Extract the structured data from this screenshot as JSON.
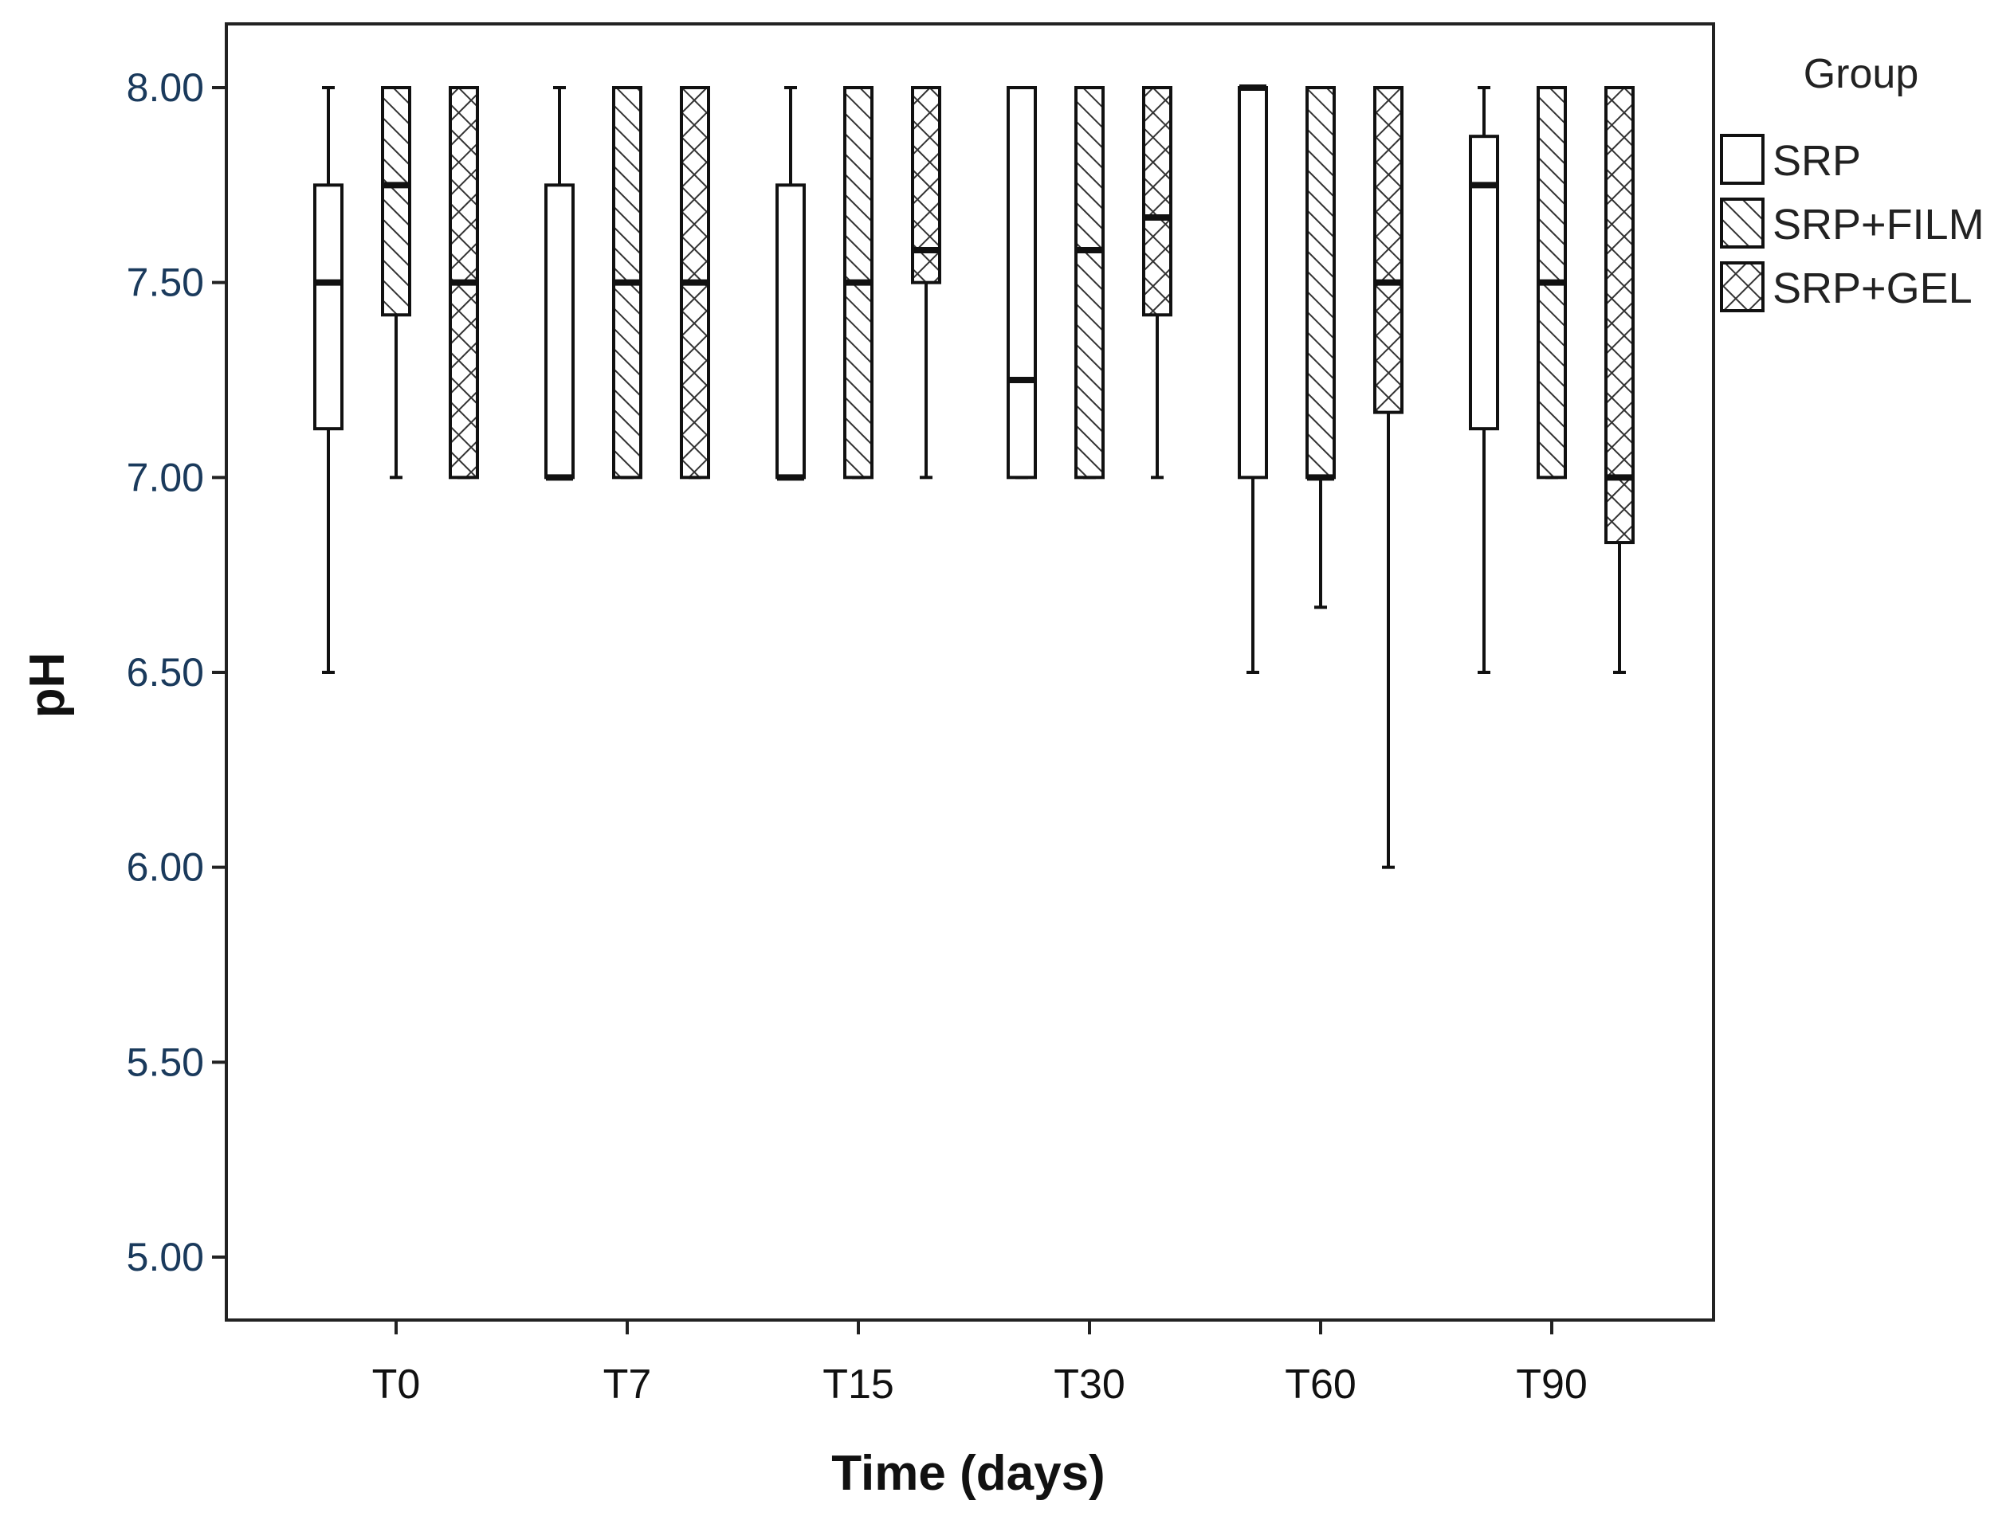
{
  "chart_data": {
    "type": "boxplot",
    "title": "",
    "xlabel": "Time (days)",
    "ylabel": "pH",
    "ylim": [
      5.0,
      8.0
    ],
    "yticks": [
      "5.00",
      "5.50",
      "6.00",
      "6.50",
      "7.00",
      "7.50",
      "8.00"
    ],
    "categories": [
      "T0",
      "T7",
      "T15",
      "T30",
      "T60",
      "T90"
    ],
    "legend": {
      "title": "Group",
      "position": "right"
    },
    "series": [
      {
        "name": "SRP",
        "pattern": "none",
        "boxes": [
          {
            "min": 6.5,
            "q1": 7.125,
            "median": 7.5,
            "q3": 7.75,
            "max": 8.0
          },
          {
            "min": 7.0,
            "q1": 7.0,
            "median": 7.0,
            "q3": 7.75,
            "max": 8.0
          },
          {
            "min": 7.0,
            "q1": 7.0,
            "median": 7.0,
            "q3": 7.75,
            "max": 8.0
          },
          {
            "min": 7.0,
            "q1": 7.0,
            "median": 7.25,
            "q3": 8.0,
            "max": 8.0
          },
          {
            "min": 6.5,
            "q1": 7.0,
            "median": 8.0,
            "q3": 8.0,
            "max": 8.0
          },
          {
            "min": 6.5,
            "q1": 7.125,
            "median": 7.75,
            "q3": 7.875,
            "max": 8.0
          }
        ]
      },
      {
        "name": "SRP+FILM",
        "pattern": "diagonal",
        "boxes": [
          {
            "min": 7.0,
            "q1": 7.417,
            "median": 7.75,
            "q3": 8.0,
            "max": 8.0
          },
          {
            "min": 7.0,
            "q1": 7.0,
            "median": 7.5,
            "q3": 8.0,
            "max": 8.0
          },
          {
            "min": 7.0,
            "q1": 7.0,
            "median": 7.5,
            "q3": 8.0,
            "max": 8.0
          },
          {
            "min": 7.0,
            "q1": 7.0,
            "median": 7.583,
            "q3": 8.0,
            "max": 8.0
          },
          {
            "min": 6.667,
            "q1": 7.0,
            "median": 7.0,
            "q3": 8.0,
            "max": 8.0
          },
          {
            "min": 7.0,
            "q1": 7.0,
            "median": 7.5,
            "q3": 8.0,
            "max": 8.0
          }
        ]
      },
      {
        "name": "SRP+GEL",
        "pattern": "crosshatch",
        "boxes": [
          {
            "min": 7.0,
            "q1": 7.0,
            "median": 7.5,
            "q3": 8.0,
            "max": 8.0
          },
          {
            "min": 7.0,
            "q1": 7.0,
            "median": 7.5,
            "q3": 8.0,
            "max": 8.0
          },
          {
            "min": 7.0,
            "q1": 7.5,
            "median": 7.583,
            "q3": 8.0,
            "max": 8.0
          },
          {
            "min": 7.0,
            "q1": 7.417,
            "median": 7.667,
            "q3": 8.0,
            "max": 8.0
          },
          {
            "min": 6.0,
            "q1": 7.167,
            "median": 7.5,
            "q3": 8.0,
            "max": 8.0
          },
          {
            "min": 6.5,
            "q1": 6.833,
            "median": 7.0,
            "q3": 8.0,
            "max": 8.0
          }
        ]
      }
    ]
  }
}
